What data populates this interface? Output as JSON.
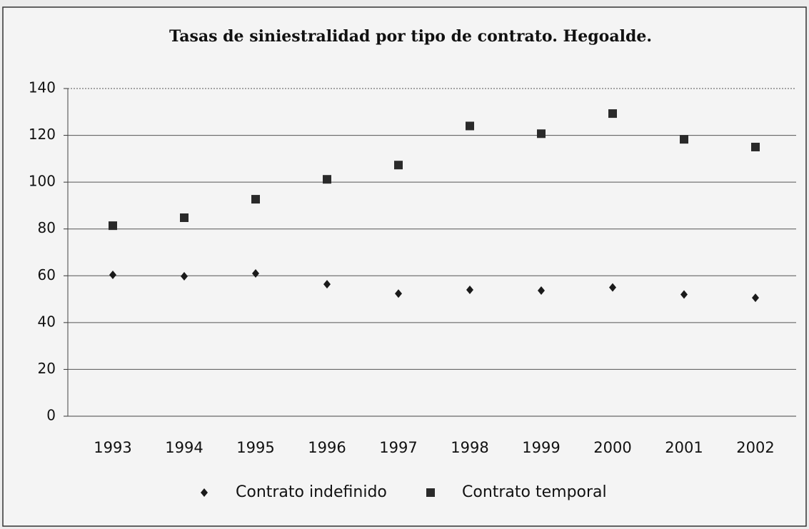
{
  "chart_data": {
    "type": "scatter",
    "title": "Tasas de siniestralidad por tipo de contrato. Hegoalde.",
    "categories": [
      "1993",
      "1994",
      "1995",
      "1996",
      "1997",
      "1998",
      "1999",
      "2000",
      "2001",
      "2002"
    ],
    "series": [
      {
        "name": "Contrato indefinido",
        "color": "#1a1a1a",
        "marker": "diamond",
        "values": [
          60.4,
          59.8,
          61,
          56.4,
          52.4,
          54,
          53.7,
          55,
          52,
          50.6
        ]
      },
      {
        "name": "Contrato temporal",
        "color": "#2a2a2a",
        "marker": "square",
        "values": [
          81.4,
          84.8,
          92.7,
          101.2,
          107.3,
          124,
          120.7,
          129.3,
          118.3,
          115
        ]
      }
    ],
    "ylim": [
      0,
      140
    ],
    "yticks": [
      0,
      20,
      40,
      60,
      80,
      100,
      120,
      140
    ],
    "grid": true,
    "legend": "bottom"
  }
}
